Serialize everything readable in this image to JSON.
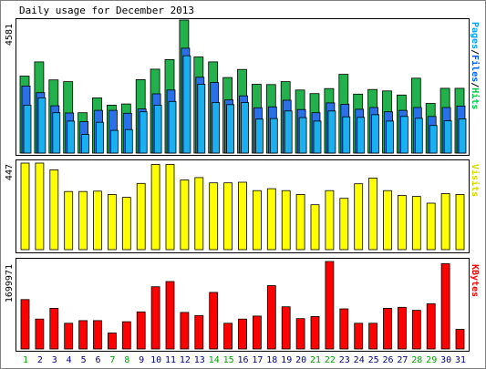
{
  "chart_data": [
    {
      "type": "bar",
      "title": "Daily usage for December 2013",
      "ymax_label": "4581",
      "ylabel_parts": [
        {
          "text": "Pages",
          "color": "#00a0ff"
        },
        {
          "text": "/",
          "color": "#000000"
        },
        {
          "text": "Files",
          "color": "#0060ff"
        },
        {
          "text": "/",
          "color": "#000000"
        },
        {
          "text": "Hits",
          "color": "#00cc44"
        }
      ],
      "ymax": 4581,
      "series": [
        {
          "name": "Hits",
          "color": "#22b14c",
          "values": [
            2650,
            3140,
            2520,
            2460,
            1390,
            1900,
            1650,
            1690,
            2530,
            2890,
            3220,
            4581,
            3310,
            3140,
            2600,
            2880,
            2370,
            2360,
            2460,
            2170,
            2050,
            2220,
            2710,
            2030,
            2190,
            2140,
            2000,
            2580,
            1710,
            2230,
            2230
          ]
        },
        {
          "name": "Files",
          "color": "#2a70e8",
          "values": [
            2310,
            2080,
            1630,
            1380,
            1080,
            1470,
            1470,
            1370,
            1520,
            2040,
            2170,
            3610,
            2610,
            2430,
            1830,
            1970,
            1560,
            1590,
            1820,
            1500,
            1390,
            1730,
            1680,
            1510,
            1570,
            1420,
            1470,
            1570,
            1260,
            1570,
            1620
          ]
        },
        {
          "name": "Pages",
          "color": "#1ab0f0",
          "values": [
            1650,
            1900,
            1390,
            1100,
            640,
            1060,
            780,
            810,
            1420,
            1650,
            1780,
            3350,
            2370,
            1740,
            1670,
            1740,
            1170,
            1190,
            1450,
            1220,
            1100,
            1450,
            1250,
            1230,
            1320,
            1100,
            1260,
            1200,
            950,
            1110,
            1180
          ]
        }
      ]
    },
    {
      "type": "bar",
      "ymax_label": "447",
      "ylabel": "Visits",
      "ylabel_color": "#d8d800",
      "ymax": 447,
      "series": [
        {
          "name": "Visits",
          "color": "#ffff00",
          "values": [
            447,
            447,
            412,
            300,
            300,
            302,
            285,
            270,
            342,
            440,
            440,
            360,
            372,
            345,
            345,
            348,
            305,
            315,
            305,
            285,
            232,
            305,
            265,
            340,
            370,
            305,
            280,
            275,
            240,
            290,
            285
          ]
        }
      ]
    },
    {
      "type": "bar",
      "ymax_label": "1699971",
      "ylabel": "KBytes",
      "ylabel_color": "#ff0000",
      "ymax": 1699971,
      "series": [
        {
          "name": "KBytes",
          "color": "#ff0000",
          "values": [
            960000,
            580000,
            790000,
            500000,
            550000,
            550000,
            310000,
            530000,
            720000,
            1210000,
            1310000,
            710000,
            650000,
            1100000,
            500000,
            580000,
            640000,
            1230000,
            820000,
            590000,
            630000,
            1699971,
            780000,
            500000,
            500000,
            790000,
            810000,
            750000,
            880000,
            1660000,
            380000
          ]
        }
      ]
    }
  ],
  "days": [
    {
      "label": "1",
      "weekend": true
    },
    {
      "label": "2",
      "weekend": false
    },
    {
      "label": "3",
      "weekend": false
    },
    {
      "label": "4",
      "weekend": false
    },
    {
      "label": "5",
      "weekend": false
    },
    {
      "label": "6",
      "weekend": false
    },
    {
      "label": "7",
      "weekend": true
    },
    {
      "label": "8",
      "weekend": true
    },
    {
      "label": "9",
      "weekend": false
    },
    {
      "label": "10",
      "weekend": false
    },
    {
      "label": "11",
      "weekend": false
    },
    {
      "label": "12",
      "weekend": false
    },
    {
      "label": "13",
      "weekend": false
    },
    {
      "label": "14",
      "weekend": true
    },
    {
      "label": "15",
      "weekend": true
    },
    {
      "label": "16",
      "weekend": false
    },
    {
      "label": "17",
      "weekend": false
    },
    {
      "label": "18",
      "weekend": false
    },
    {
      "label": "19",
      "weekend": false
    },
    {
      "label": "20",
      "weekend": false
    },
    {
      "label": "21",
      "weekend": true
    },
    {
      "label": "22",
      "weekend": true
    },
    {
      "label": "23",
      "weekend": false
    },
    {
      "label": "24",
      "weekend": false
    },
    {
      "label": "25",
      "weekend": false
    },
    {
      "label": "26",
      "weekend": false
    },
    {
      "label": "27",
      "weekend": false
    },
    {
      "label": "28",
      "weekend": true
    },
    {
      "label": "29",
      "weekend": true
    },
    {
      "label": "30",
      "weekend": false
    },
    {
      "label": "31",
      "weekend": false
    }
  ],
  "colors": {
    "weekday_label": "#000080",
    "weekend_label": "#00a000"
  }
}
